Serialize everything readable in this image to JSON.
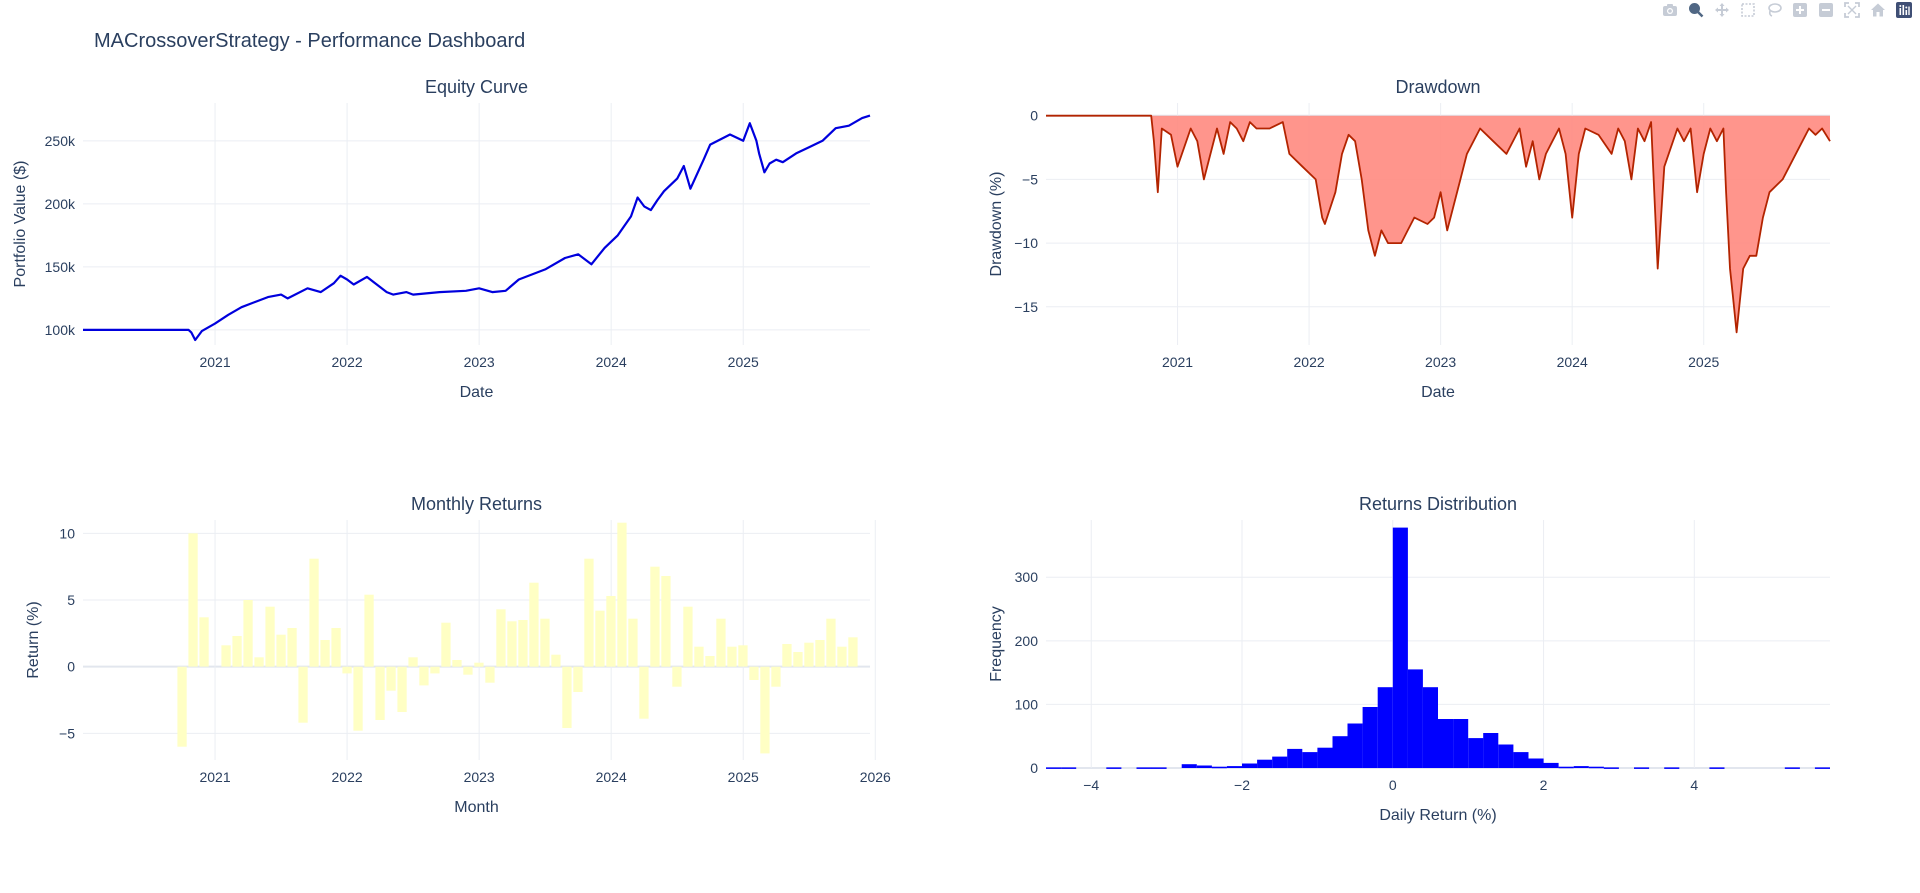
{
  "title": "MACrossoverStrategy - Performance Dashboard",
  "modebar": [
    {
      "name": "camera-icon",
      "label": "Download plot as a png"
    },
    {
      "name": "zoom-icon",
      "label": "Zoom",
      "active": true
    },
    {
      "name": "pan-icon",
      "label": "Pan"
    },
    {
      "name": "box-select-icon",
      "label": "Box Select"
    },
    {
      "name": "lasso-select-icon",
      "label": "Lasso Select"
    },
    {
      "name": "zoom-in-icon",
      "label": "Zoom in"
    },
    {
      "name": "zoom-out-icon",
      "label": "Zoom out"
    },
    {
      "name": "autoscale-icon",
      "label": "Autoscale"
    },
    {
      "name": "reset-axes-icon",
      "label": "Reset axes"
    },
    {
      "name": "plotly-logo-icon",
      "label": "Produced with Plotly"
    }
  ],
  "colors": {
    "equity": "#0000dd",
    "drawdown_line": "#b32400",
    "drawdown_fill": "#ff8a80",
    "monthly_bar": "#ffffc4",
    "hist_bar": "#0000ff",
    "grid": "#ebeef3",
    "zero": "#e2e6ee",
    "text": "#2a3f5f"
  },
  "chart_data": [
    {
      "id": "equity",
      "type": "line",
      "title": "Equity Curve",
      "xlabel": "Date",
      "ylabel": "Portfolio Value ($)",
      "xticks": [
        "2021",
        "2022",
        "2023",
        "2024",
        "2025"
      ],
      "yticks": [
        {
          "v": 100000,
          "label": "100k"
        },
        {
          "v": 150000,
          "label": "150k"
        },
        {
          "v": 200000,
          "label": "200k"
        },
        {
          "v": 250000,
          "label": "250k"
        }
      ],
      "xlim": [
        2020.0,
        2025.96
      ],
      "ylim": [
        88000,
        280000
      ],
      "series": [
        {
          "x": [
            2020.0,
            2020.4,
            2020.8,
            2020.82,
            2020.85,
            2020.9,
            2021.0,
            2021.1,
            2021.2,
            2021.3,
            2021.4,
            2021.5,
            2021.55,
            2021.7,
            2021.8,
            2021.9,
            2021.95,
            2022.0,
            2022.05,
            2022.15,
            2022.2,
            2022.3,
            2022.35,
            2022.45,
            2022.5,
            2022.7,
            2022.9,
            2023.0,
            2023.1,
            2023.2,
            2023.3,
            2023.5,
            2023.65,
            2023.75,
            2023.85,
            2023.95,
            2024.05,
            2024.15,
            2024.2,
            2024.25,
            2024.3,
            2024.35,
            2024.4,
            2024.5,
            2024.55,
            2024.6,
            2024.7,
            2024.75,
            2024.9,
            2025.0,
            2025.05,
            2025.1,
            2025.12,
            2025.16,
            2025.2,
            2025.25,
            2025.3,
            2025.4,
            2025.5,
            2025.6,
            2025.7,
            2025.8,
            2025.9,
            2025.96
          ],
          "y": [
            100000,
            100000,
            100000,
            98000,
            92000,
            99000,
            105000,
            112000,
            118000,
            122000,
            126000,
            128000,
            125000,
            133000,
            130000,
            137000,
            143000,
            140000,
            136000,
            142000,
            138000,
            130000,
            128000,
            130000,
            128000,
            130000,
            131000,
            133000,
            130000,
            131000,
            140000,
            148000,
            157000,
            160000,
            152000,
            165000,
            175000,
            190000,
            205000,
            198000,
            195000,
            203000,
            210000,
            220000,
            230000,
            212000,
            235000,
            247000,
            255000,
            250000,
            264000,
            250000,
            240000,
            225000,
            232000,
            235000,
            233000,
            240000,
            245000,
            250000,
            260000,
            262000,
            268000,
            270000
          ]
        }
      ]
    },
    {
      "id": "drawdown",
      "type": "area",
      "title": "Drawdown",
      "xlabel": "Date",
      "ylabel": "Drawdown (%)",
      "xticks": [
        "2021",
        "2022",
        "2023",
        "2024",
        "2025"
      ],
      "yticks": [
        0,
        -5,
        -10,
        -15
      ],
      "xlim": [
        2020.0,
        2025.96
      ],
      "ylim": [
        -18,
        1
      ],
      "series": [
        {
          "x": [
            2020.0,
            2020.8,
            2020.82,
            2020.85,
            2020.88,
            2020.95,
            2021.0,
            2021.1,
            2021.15,
            2021.2,
            2021.3,
            2021.35,
            2021.4,
            2021.45,
            2021.5,
            2021.55,
            2021.6,
            2021.7,
            2021.8,
            2021.85,
            2021.95,
            2022.05,
            2022.1,
            2022.12,
            2022.2,
            2022.25,
            2022.3,
            2022.35,
            2022.4,
            2022.45,
            2022.5,
            2022.55,
            2022.6,
            2022.7,
            2022.75,
            2022.8,
            2022.9,
            2022.95,
            2023.0,
            2023.05,
            2023.1,
            2023.15,
            2023.2,
            2023.3,
            2023.4,
            2023.5,
            2023.6,
            2023.65,
            2023.7,
            2023.75,
            2023.8,
            2023.85,
            2023.9,
            2023.95,
            2024.0,
            2024.05,
            2024.1,
            2024.2,
            2024.3,
            2024.35,
            2024.4,
            2024.45,
            2024.5,
            2024.55,
            2024.6,
            2024.65,
            2024.7,
            2024.8,
            2024.85,
            2024.9,
            2024.95,
            2025.0,
            2025.05,
            2025.1,
            2025.15,
            2025.17,
            2025.2,
            2025.22,
            2025.25,
            2025.3,
            2025.35,
            2025.4,
            2025.45,
            2025.5,
            2025.6,
            2025.7,
            2025.75,
            2025.8,
            2025.85,
            2025.9,
            2025.96
          ],
          "y": [
            0,
            0,
            -2,
            -6,
            -1,
            -1.5,
            -4,
            -1,
            -2,
            -5,
            -1,
            -3,
            -0.5,
            -1,
            -2,
            -0.5,
            -1,
            -1,
            -0.5,
            -3,
            -4,
            -5,
            -8,
            -8.5,
            -6,
            -3,
            -1.5,
            -2,
            -5,
            -9,
            -11,
            -9,
            -10,
            -10,
            -9,
            -8,
            -8.5,
            -8,
            -6,
            -9,
            -7,
            -5,
            -3,
            -1,
            -2,
            -3,
            -1,
            -4,
            -2,
            -5,
            -3,
            -2,
            -1,
            -3,
            -8,
            -3,
            -1,
            -1.5,
            -3,
            -1,
            -2,
            -5,
            -1,
            -2,
            -0.5,
            -12,
            -4,
            -1,
            -2,
            -1,
            -6,
            -3,
            -1,
            -2,
            -1,
            -6,
            -12,
            -14,
            -17,
            -12,
            -11,
            -11,
            -8,
            -6,
            -5,
            -3,
            -2,
            -1,
            -1.5,
            -1,
            -2
          ]
        }
      ]
    },
    {
      "id": "monthly",
      "type": "bar",
      "title": "Monthly Returns",
      "xlabel": "Month",
      "ylabel": "Return (%)",
      "xticks": [
        "2021",
        "2022",
        "2023",
        "2024",
        "2025",
        "2026"
      ],
      "yticks": [
        10,
        5,
        0,
        -5
      ],
      "xlim": [
        2020.0,
        2025.96
      ],
      "ylim": [
        -7,
        11
      ],
      "x_start": 2020.75,
      "x_step": 0.0833,
      "values": [
        -6,
        10,
        3.7,
        0,
        1.6,
        2.3,
        5,
        0.7,
        4.5,
        2.4,
        2.9,
        -4.2,
        8.1,
        2,
        2.9,
        -0.5,
        -4.8,
        5.4,
        -4,
        -1.8,
        -3.4,
        0.7,
        -1.4,
        -0.5,
        3.3,
        0.5,
        -0.6,
        0.3,
        -1.2,
        4.3,
        3.4,
        3.5,
        6.3,
        3.6,
        0.9,
        -4.6,
        -1.9,
        8.1,
        4.2,
        5.3,
        10.8,
        3.6,
        -3.9,
        7.5,
        6.8,
        -1.5,
        4.5,
        1.5,
        0.8,
        3.6,
        1.5,
        1.6,
        -1,
        -6.5,
        -1.5,
        1.7,
        1.1,
        1.8,
        2,
        3.6,
        1.5,
        2.2
      ]
    },
    {
      "id": "distribution",
      "type": "bar",
      "title": "Returns Distribution",
      "xlabel": "Daily Return (%)",
      "ylabel": "Frequency",
      "xticks": [
        {
          "v": -4,
          "label": "−4"
        },
        {
          "v": -2,
          "label": "−2"
        },
        {
          "v": 0,
          "label": "0"
        },
        {
          "v": 2,
          "label": "2"
        },
        {
          "v": 4,
          "label": "4"
        }
      ],
      "yticks": [
        0,
        100,
        200,
        300
      ],
      "xlim": [
        -4.6,
        5.8
      ],
      "ylim": [
        0,
        390
      ],
      "bin_width": 0.2,
      "bins": [
        -4.6,
        -4.4,
        -4.2,
        -4.0,
        -3.8,
        -3.6,
        -3.4,
        -3.2,
        -3.0,
        -2.8,
        -2.6,
        -2.4,
        -2.2,
        -2.0,
        -1.8,
        -1.6,
        -1.4,
        -1.2,
        -1.0,
        -0.8,
        -0.6,
        -0.4,
        -0.2,
        0.0,
        0.2,
        0.4,
        0.6,
        0.8,
        1.0,
        1.2,
        1.4,
        1.6,
        1.8,
        2.0,
        2.2,
        2.4,
        2.6,
        2.8,
        3.0,
        3.2,
        3.4,
        3.6,
        3.8,
        4.0,
        4.2,
        4.4,
        4.6,
        4.8,
        5.0,
        5.2,
        5.4,
        5.6
      ],
      "values": [
        1,
        1,
        0,
        0,
        1,
        0,
        1,
        1,
        0,
        6,
        4,
        2,
        3,
        7,
        13,
        18,
        30,
        25,
        32,
        50,
        70,
        96,
        127,
        378,
        155,
        127,
        77,
        77,
        47,
        55,
        37,
        25,
        15,
        8,
        2,
        3,
        2,
        1,
        0,
        1,
        0,
        1,
        0,
        0,
        1,
        0,
        0,
        0,
        0,
        1,
        0,
        1
      ]
    }
  ]
}
